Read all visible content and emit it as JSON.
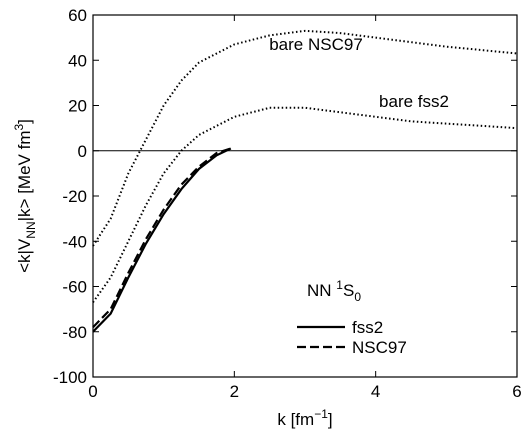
{
  "chart_data": {
    "type": "line",
    "xlabel_parts": [
      "k [fm",
      "−1",
      "]"
    ],
    "ylabel_parts": [
      "<k|V",
      "NN",
      "|k> [MeV fm",
      "3",
      "]"
    ],
    "legend_title_parts": [
      "NN ",
      "1",
      "S",
      "0"
    ],
    "xlim": [
      0,
      6
    ],
    "xticks": [
      0,
      2,
      4,
      6
    ],
    "ylim": [
      -100,
      60
    ],
    "yticks": [
      -100,
      -80,
      -60,
      -40,
      -20,
      0,
      20,
      40,
      60
    ],
    "zero_line": true,
    "series": [
      {
        "name": "bare NSC97",
        "color": "#000000",
        "dash": "dotted",
        "in_legend": false,
        "x": [
          0,
          0.25,
          0.5,
          0.75,
          1.0,
          1.25,
          1.5,
          2.0,
          2.5,
          3.0,
          3.5,
          4.0,
          4.5,
          5.0,
          5.5,
          6.0
        ],
        "values": [
          -42,
          -30,
          -10,
          5,
          20,
          31,
          39,
          47,
          51,
          53,
          52,
          50,
          48,
          46,
          44.5,
          43
        ]
      },
      {
        "name": "bare fss2",
        "color": "#000000",
        "dash": "dotted",
        "in_legend": false,
        "x": [
          0,
          0.25,
          0.5,
          0.75,
          1.0,
          1.25,
          1.5,
          2.0,
          2.5,
          3.0,
          3.5,
          4.0,
          4.5,
          5.0,
          5.5,
          6.0
        ],
        "values": [
          -67,
          -56,
          -40,
          -24,
          -10,
          0,
          7,
          15,
          19,
          19,
          17,
          15,
          13,
          12,
          11,
          10
        ]
      },
      {
        "name": "fss2",
        "color": "#000000",
        "dash": "solid",
        "in_legend": true,
        "x": [
          0,
          0.25,
          0.5,
          0.75,
          1.0,
          1.25,
          1.5,
          1.75,
          1.95
        ],
        "values": [
          -80,
          -72,
          -56,
          -41,
          -28,
          -17,
          -8,
          -2,
          1
        ]
      },
      {
        "name": "NSC97",
        "color": "#000000",
        "dash": "dashed",
        "in_legend": true,
        "x": [
          0,
          0.25,
          0.5,
          0.75,
          1.0,
          1.25,
          1.5,
          1.75,
          1.95
        ],
        "values": [
          -78,
          -70,
          -54,
          -39,
          -26,
          -15,
          -7,
          -1,
          1
        ]
      }
    ]
  }
}
